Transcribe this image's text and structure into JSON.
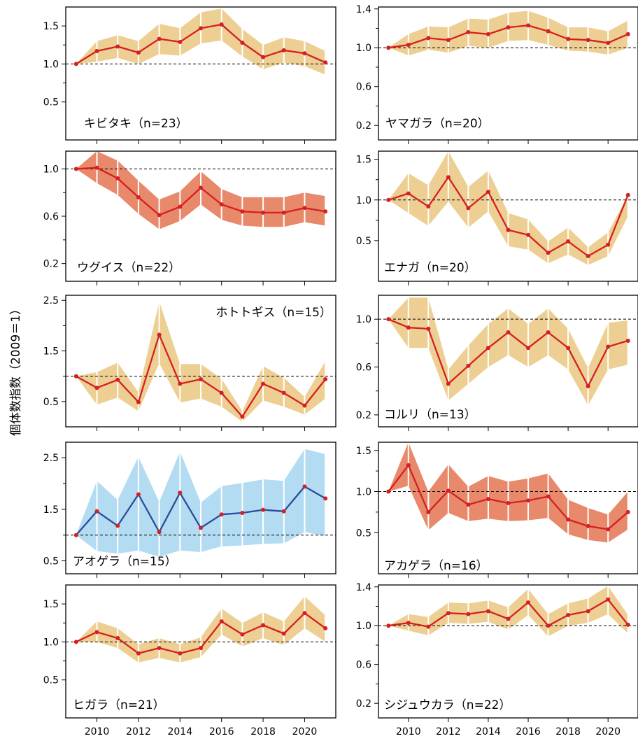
{
  "figure": {
    "ylabel": "個体数指数（2009＝1）",
    "colors": {
      "band_tan": "#eecf93",
      "band_salmon": "#e8896b",
      "band_blue": "#b3dcf2",
      "line_red": "#d42020",
      "line_blue": "#2b4c9b",
      "frame": "#000000",
      "reference": "#000000"
    }
  },
  "chart_data": [
    {
      "type": "line",
      "title": "キビタキ（n=23）",
      "xlabel": "",
      "ylabel": "",
      "x": [
        2009,
        2010,
        2011,
        2012,
        2013,
        2014,
        2015,
        2016,
        2017,
        2018,
        2019,
        2020,
        2021
      ],
      "y": [
        1.0,
        1.17,
        1.23,
        1.15,
        1.33,
        1.29,
        1.47,
        1.52,
        1.28,
        1.09,
        1.18,
        1.14,
        1.02
      ],
      "lower": [
        1.0,
        1.03,
        1.08,
        1.0,
        1.13,
        1.11,
        1.27,
        1.31,
        1.1,
        0.93,
        1.02,
        0.97,
        0.86
      ],
      "upper": [
        1.0,
        1.3,
        1.38,
        1.3,
        1.53,
        1.47,
        1.68,
        1.73,
        1.46,
        1.25,
        1.35,
        1.3,
        1.17
      ],
      "reference_y": 1.0,
      "ylim": [
        0,
        1.75
      ],
      "yticks": [
        0.5,
        1.0,
        1.5
      ],
      "ytick_labels": [
        "0.5",
        "1.0",
        "1.5"
      ],
      "xlim": [
        2008.5,
        2021.5
      ],
      "xticks": [
        2010,
        2012,
        2014,
        2016,
        2018,
        2020
      ],
      "xtick_labels": [],
      "band_color": "tan",
      "line_color": "red",
      "grid": false
    },
    {
      "type": "line",
      "title": "ヤマガラ（n=20）",
      "xlabel": "",
      "ylabel": "",
      "x": [
        2009,
        2010,
        2011,
        2012,
        2013,
        2014,
        2015,
        2016,
        2017,
        2018,
        2019,
        2020,
        2021
      ],
      "y": [
        1.0,
        1.03,
        1.1,
        1.08,
        1.16,
        1.14,
        1.21,
        1.23,
        1.17,
        1.09,
        1.08,
        1.05,
        1.14
      ],
      "lower": [
        1.0,
        0.92,
        0.98,
        0.95,
        1.02,
        1.0,
        1.07,
        1.08,
        1.03,
        0.97,
        0.96,
        0.93,
        1.0
      ],
      "upper": [
        1.0,
        1.14,
        1.22,
        1.21,
        1.3,
        1.29,
        1.36,
        1.38,
        1.31,
        1.21,
        1.21,
        1.17,
        1.28
      ],
      "reference_y": 1.0,
      "ylim": [
        0.05,
        1.42
      ],
      "yticks": [
        0.2,
        0.6,
        1.0,
        1.4
      ],
      "ytick_labels": [
        "0.2",
        "0.6",
        "1.0",
        "1.4"
      ],
      "xlim": [
        2008.5,
        2021.5
      ],
      "xticks": [
        2010,
        2012,
        2014,
        2016,
        2018,
        2020
      ],
      "xtick_labels": [],
      "band_color": "tan",
      "line_color": "red",
      "grid": false
    },
    {
      "type": "line",
      "title": "ウグイス（n=22）",
      "xlabel": "",
      "ylabel": "",
      "x": [
        2009,
        2010,
        2011,
        2012,
        2013,
        2014,
        2015,
        2016,
        2017,
        2018,
        2019,
        2020,
        2021
      ],
      "y": [
        1.0,
        1.01,
        0.92,
        0.76,
        0.61,
        0.68,
        0.84,
        0.7,
        0.64,
        0.63,
        0.63,
        0.67,
        0.64
      ],
      "lower": [
        1.0,
        0.88,
        0.78,
        0.62,
        0.49,
        0.56,
        0.7,
        0.57,
        0.52,
        0.51,
        0.51,
        0.55,
        0.52
      ],
      "upper": [
        1.0,
        1.15,
        1.07,
        0.9,
        0.74,
        0.81,
        0.98,
        0.83,
        0.76,
        0.76,
        0.76,
        0.8,
        0.77
      ],
      "reference_y": 1.0,
      "ylim": [
        0.05,
        1.15
      ],
      "yticks": [
        0.2,
        0.6,
        1.0
      ],
      "ytick_labels": [
        "0.2",
        "0.6",
        "1.0"
      ],
      "xlim": [
        2008.5,
        2021.5
      ],
      "xticks": [
        2010,
        2012,
        2014,
        2016,
        2018,
        2020
      ],
      "xtick_labels": [],
      "band_color": "salmon",
      "line_color": "red",
      "grid": false
    },
    {
      "type": "line",
      "title": "エナガ（n=20）",
      "xlabel": "",
      "ylabel": "",
      "x": [
        2009,
        2010,
        2011,
        2012,
        2013,
        2014,
        2015,
        2016,
        2017,
        2018,
        2019,
        2020,
        2021
      ],
      "y": [
        1.0,
        1.08,
        0.92,
        1.28,
        0.9,
        1.1,
        0.63,
        0.57,
        0.35,
        0.49,
        0.31,
        0.45,
        1.06
      ],
      "lower": [
        1.0,
        0.84,
        0.68,
        0.98,
        0.66,
        0.86,
        0.43,
        0.39,
        0.22,
        0.33,
        0.2,
        0.31,
        0.8
      ],
      "upper": [
        1.0,
        1.33,
        1.18,
        1.6,
        1.16,
        1.36,
        0.84,
        0.76,
        0.49,
        0.66,
        0.42,
        0.6,
        1.06
      ],
      "reference_y": 1.0,
      "ylim": [
        0.0,
        1.6
      ],
      "yticks": [
        0.5,
        1.0,
        1.5
      ],
      "ytick_labels": [
        "0.5",
        "1.0",
        "1.5"
      ],
      "xlim": [
        2008.5,
        2021.5
      ],
      "xticks": [
        2010,
        2012,
        2014,
        2016,
        2018,
        2020
      ],
      "xtick_labels": [],
      "band_color": "tan",
      "line_color": "red",
      "grid": false
    },
    {
      "type": "line",
      "title": "ホトトギス（n=15）",
      "xlabel": "",
      "ylabel": "",
      "x": [
        2009,
        2010,
        2011,
        2012,
        2013,
        2014,
        2015,
        2016,
        2017,
        2018,
        2019,
        2020,
        2021
      ],
      "y": [
        1.0,
        0.77,
        0.93,
        0.49,
        1.82,
        0.85,
        0.94,
        0.67,
        0.2,
        0.85,
        0.67,
        0.42,
        0.94
      ],
      "lower": [
        1.0,
        0.44,
        0.58,
        0.31,
        1.26,
        0.48,
        0.56,
        0.4,
        0.1,
        0.52,
        0.4,
        0.24,
        0.56
      ],
      "upper": [
        1.0,
        1.08,
        1.27,
        0.68,
        2.48,
        1.24,
        1.24,
        0.95,
        0.31,
        1.2,
        0.97,
        0.59,
        1.3
      ],
      "reference_y": 1.0,
      "ylim": [
        0.0,
        2.6
      ],
      "yticks": [
        0.5,
        1.5,
        2.5
      ],
      "ytick_labels": [
        "0.5",
        "1.5",
        "2.5"
      ],
      "xlim": [
        2008.5,
        2021.5
      ],
      "xticks": [
        2010,
        2012,
        2014,
        2016,
        2018,
        2020
      ],
      "xtick_labels": [],
      "band_color": "tan",
      "line_color": "red",
      "grid": false
    },
    {
      "type": "line",
      "title": "コルリ（n=13）",
      "xlabel": "",
      "ylabel": "",
      "x": [
        2009,
        2010,
        2011,
        2012,
        2013,
        2014,
        2015,
        2016,
        2017,
        2018,
        2019,
        2020,
        2021
      ],
      "y": [
        1.0,
        0.93,
        0.92,
        0.46,
        0.61,
        0.76,
        0.89,
        0.76,
        0.89,
        0.76,
        0.44,
        0.77,
        0.82
      ],
      "lower": [
        1.0,
        0.76,
        0.76,
        0.32,
        0.46,
        0.6,
        0.7,
        0.6,
        0.7,
        0.58,
        0.28,
        0.58,
        0.62
      ],
      "upper": [
        1.0,
        1.18,
        1.18,
        0.58,
        0.78,
        0.96,
        1.09,
        0.96,
        1.09,
        0.92,
        0.59,
        0.97,
        0.99
      ],
      "reference_y": 1.0,
      "ylim": [
        0.1,
        1.2
      ],
      "yticks": [
        0.2,
        0.6,
        1.0
      ],
      "ytick_labels": [
        "0.2",
        "0.6",
        "1.0"
      ],
      "xlim": [
        2008.5,
        2021.5
      ],
      "xticks": [
        2010,
        2012,
        2014,
        2016,
        2018,
        2020
      ],
      "xtick_labels": [],
      "band_color": "tan",
      "line_color": "red",
      "grid": false
    },
    {
      "type": "line",
      "title": "アオゲラ（n=15）",
      "xlabel": "",
      "ylabel": "",
      "x": [
        2009,
        2010,
        2011,
        2012,
        2013,
        2014,
        2015,
        2016,
        2017,
        2018,
        2019,
        2020,
        2021
      ],
      "y": [
        1.0,
        1.46,
        1.18,
        1.79,
        1.06,
        1.82,
        1.14,
        1.4,
        1.43,
        1.49,
        1.46,
        1.94,
        1.71
      ],
      "lower": [
        1.0,
        0.69,
        0.64,
        0.7,
        0.58,
        0.7,
        0.67,
        0.78,
        0.8,
        0.83,
        0.84,
        1.06,
        0.98
      ],
      "upper": [
        1.0,
        2.05,
        1.68,
        2.52,
        1.64,
        2.62,
        1.63,
        1.95,
        2.01,
        2.08,
        2.05,
        2.67,
        2.57
      ],
      "reference_y": 1.0,
      "ylim": [
        0.25,
        2.8
      ],
      "yticks": [
        0.5,
        1.5,
        2.5
      ],
      "ytick_labels": [
        "0.5",
        "1.5",
        "2.5"
      ],
      "xlim": [
        2008.5,
        2021.5
      ],
      "xticks": [
        2010,
        2012,
        2014,
        2016,
        2018,
        2020
      ],
      "xtick_labels": [],
      "band_color": "blue",
      "line_color": "blue",
      "grid": false
    },
    {
      "type": "line",
      "title": "アカゲラ（n=16）",
      "xlabel": "",
      "ylabel": "",
      "x": [
        2009,
        2010,
        2011,
        2012,
        2013,
        2014,
        2015,
        2016,
        2017,
        2018,
        2019,
        2020,
        2021
      ],
      "y": [
        1.0,
        1.32,
        0.75,
        1.01,
        0.84,
        0.91,
        0.86,
        0.89,
        0.94,
        0.66,
        0.58,
        0.54,
        0.75
      ],
      "lower": [
        1.0,
        1.07,
        0.53,
        0.74,
        0.64,
        0.67,
        0.64,
        0.65,
        0.68,
        0.48,
        0.41,
        0.38,
        0.54
      ],
      "upper": [
        1.0,
        1.6,
        1.0,
        1.33,
        1.06,
        1.19,
        1.12,
        1.16,
        1.22,
        0.9,
        0.8,
        0.72,
        1.0
      ],
      "reference_y": 1.0,
      "ylim": [
        0.0,
        1.6
      ],
      "yticks": [
        0.5,
        1.0,
        1.5
      ],
      "ytick_labels": [
        "0.5",
        "1.0",
        "1.5"
      ],
      "xlim": [
        2008.5,
        2021.5
      ],
      "xticks": [
        2010,
        2012,
        2014,
        2016,
        2018,
        2020
      ],
      "xtick_labels": [],
      "band_color": "salmon",
      "line_color": "red",
      "grid": false
    },
    {
      "type": "line",
      "title": "ヒガラ（n=21）",
      "xlabel": "",
      "ylabel": "",
      "x": [
        2009,
        2010,
        2011,
        2012,
        2013,
        2014,
        2015,
        2016,
        2017,
        2018,
        2019,
        2020,
        2021
      ],
      "y": [
        1.0,
        1.13,
        1.05,
        0.85,
        0.92,
        0.85,
        0.92,
        1.27,
        1.1,
        1.22,
        1.11,
        1.38,
        1.18
      ],
      "lower": [
        1.0,
        1.0,
        0.92,
        0.73,
        0.79,
        0.73,
        0.8,
        1.1,
        0.94,
        1.05,
        0.96,
        1.18,
        1.0
      ],
      "upper": [
        1.0,
        1.27,
        1.18,
        0.97,
        1.05,
        0.97,
        1.06,
        1.44,
        1.25,
        1.39,
        1.27,
        1.6,
        1.35
      ],
      "reference_y": 1.0,
      "ylim": [
        0.0,
        1.75
      ],
      "yticks": [
        0.5,
        1.0,
        1.5
      ],
      "ytick_labels": [
        "0.5",
        "1.0",
        "1.5"
      ],
      "xlim": [
        2008.5,
        2021.5
      ],
      "xticks": [
        2010,
        2012,
        2014,
        2016,
        2018,
        2020
      ],
      "xtick_labels": [
        "2010",
        "2012",
        "2014",
        "2016",
        "2018",
        "2020"
      ],
      "band_color": "tan",
      "line_color": "red",
      "grid": false
    },
    {
      "type": "line",
      "title": "シジュウカラ（n=22）",
      "xlabel": "",
      "ylabel": "",
      "x": [
        2009,
        2010,
        2011,
        2012,
        2013,
        2014,
        2015,
        2016,
        2017,
        2018,
        2019,
        2020,
        2021
      ],
      "y": [
        1.0,
        1.03,
        0.99,
        1.13,
        1.12,
        1.15,
        1.07,
        1.24,
        1.0,
        1.11,
        1.15,
        1.27,
        1.01
      ],
      "lower": [
        1.0,
        0.95,
        0.9,
        1.03,
        1.02,
        1.04,
        0.96,
        1.11,
        0.89,
        1.0,
        1.03,
        1.12,
        0.92
      ],
      "upper": [
        1.0,
        1.12,
        1.09,
        1.24,
        1.23,
        1.26,
        1.19,
        1.38,
        1.12,
        1.23,
        1.28,
        1.41,
        1.11
      ],
      "reference_y": 1.0,
      "ylim": [
        0.05,
        1.42
      ],
      "yticks": [
        0.2,
        0.6,
        1.0,
        1.4
      ],
      "ytick_labels": [
        "0.2",
        "0.6",
        "1.0",
        "1.4"
      ],
      "xlim": [
        2008.5,
        2021.5
      ],
      "xticks": [
        2010,
        2012,
        2014,
        2016,
        2018,
        2020
      ],
      "xtick_labels": [
        "2010",
        "2012",
        "2014",
        "2016",
        "2018",
        "2020"
      ],
      "band_color": "tan",
      "line_color": "red",
      "grid": false
    }
  ]
}
